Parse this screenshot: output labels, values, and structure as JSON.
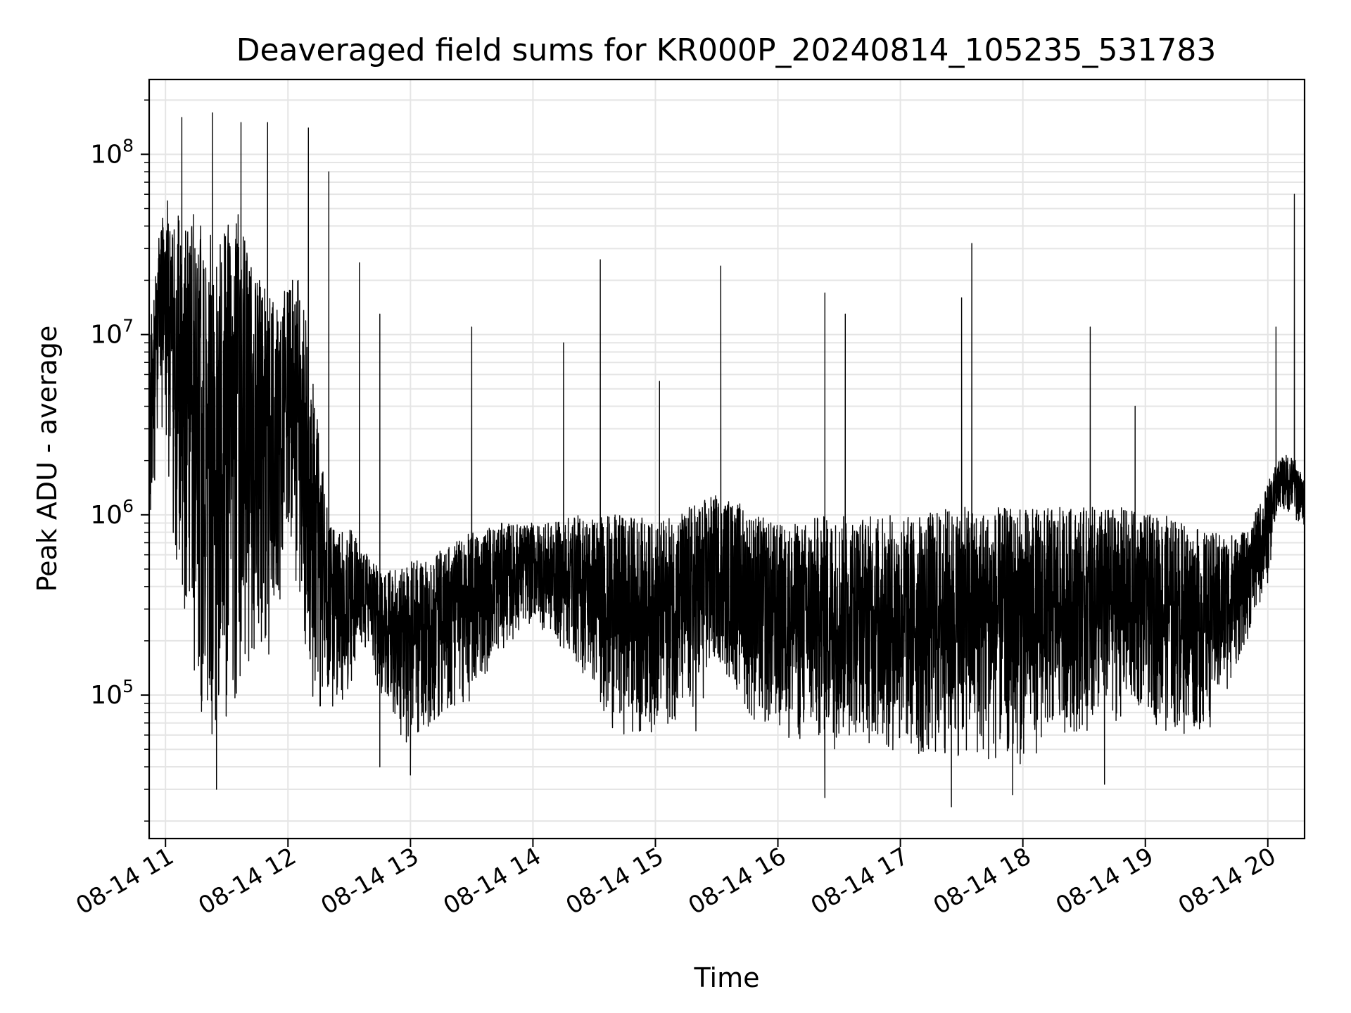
{
  "chart_data": {
    "type": "line",
    "title": "Deaveraged field sums for KR000P_20240814_105235_531783",
    "xlabel": "Time",
    "ylabel": "Peak ADU - average",
    "x_scale": "time",
    "y_scale": "log",
    "xlim": [
      "2024-08-14 10:52",
      "2024-08-14 20:18"
    ],
    "ylim": [
      16000,
      260000000
    ],
    "x_ticks": [
      {
        "value": "2024-08-14 11:00",
        "label": "08-14 11"
      },
      {
        "value": "2024-08-14 12:00",
        "label": "08-14 12"
      },
      {
        "value": "2024-08-14 13:00",
        "label": "08-14 13"
      },
      {
        "value": "2024-08-14 14:00",
        "label": "08-14 14"
      },
      {
        "value": "2024-08-14 15:00",
        "label": "08-14 15"
      },
      {
        "value": "2024-08-14 16:00",
        "label": "08-14 16"
      },
      {
        "value": "2024-08-14 17:00",
        "label": "08-14 17"
      },
      {
        "value": "2024-08-14 18:00",
        "label": "08-14 18"
      },
      {
        "value": "2024-08-14 19:00",
        "label": "08-14 19"
      },
      {
        "value": "2024-08-14 20:00",
        "label": "08-14 20"
      }
    ],
    "y_ticks": [
      {
        "value": 100000,
        "base": "10",
        "exp": "5"
      },
      {
        "value": 1000000,
        "base": "10",
        "exp": "6"
      },
      {
        "value": 10000000,
        "base": "10",
        "exp": "7"
      },
      {
        "value": 100000000,
        "base": "10",
        "exp": "8"
      }
    ],
    "grid": true,
    "line_color": "#000000",
    "grid_color": "#e5e5e5",
    "series": [
      {
        "x": [
          "2024-08-14 10:52",
          "2024-08-14 10:56",
          "2024-08-14 11:00",
          "2024-08-14 11:05",
          "2024-08-14 11:10",
          "2024-08-14 11:15",
          "2024-08-14 11:20",
          "2024-08-14 11:25",
          "2024-08-14 11:30",
          "2024-08-14 11:35",
          "2024-08-14 11:40",
          "2024-08-14 11:45",
          "2024-08-14 11:50",
          "2024-08-14 11:55",
          "2024-08-14 12:00",
          "2024-08-14 12:05",
          "2024-08-14 12:10",
          "2024-08-14 12:15",
          "2024-08-14 12:20",
          "2024-08-14 12:25",
          "2024-08-14 12:30",
          "2024-08-14 12:35",
          "2024-08-14 12:40",
          "2024-08-14 12:45",
          "2024-08-14 12:50",
          "2024-08-14 12:55",
          "2024-08-14 13:00",
          "2024-08-14 13:10",
          "2024-08-14 13:20",
          "2024-08-14 13:30",
          "2024-08-14 13:40",
          "2024-08-14 13:50",
          "2024-08-14 14:00",
          "2024-08-14 14:10",
          "2024-08-14 14:20",
          "2024-08-14 14:30",
          "2024-08-14 14:40",
          "2024-08-14 14:50",
          "2024-08-14 15:00",
          "2024-08-14 15:10",
          "2024-08-14 15:20",
          "2024-08-14 15:30",
          "2024-08-14 15:40",
          "2024-08-14 15:50",
          "2024-08-14 16:00",
          "2024-08-14 16:10",
          "2024-08-14 16:20",
          "2024-08-14 16:30",
          "2024-08-14 16:40",
          "2024-08-14 16:50",
          "2024-08-14 17:00",
          "2024-08-14 17:10",
          "2024-08-14 17:20",
          "2024-08-14 17:30",
          "2024-08-14 17:40",
          "2024-08-14 17:50",
          "2024-08-14 18:00",
          "2024-08-14 18:10",
          "2024-08-14 18:20",
          "2024-08-14 18:30",
          "2024-08-14 18:40",
          "2024-08-14 18:50",
          "2024-08-14 19:00",
          "2024-08-14 19:10",
          "2024-08-14 19:20",
          "2024-08-14 19:30",
          "2024-08-14 19:40",
          "2024-08-14 19:50",
          "2024-08-14 20:00",
          "2024-08-14 20:05",
          "2024-08-14 20:10",
          "2024-08-14 20:14",
          "2024-08-14 20:18"
        ],
        "low": [
          800000,
          1500000,
          2000000,
          300000,
          150000,
          100000,
          60000,
          50000,
          70000,
          100000,
          120000,
          200000,
          150000,
          300000,
          500000,
          400000,
          100000,
          80000,
          70000,
          80000,
          100000,
          200000,
          150000,
          100000,
          80000,
          60000,
          50000,
          70000,
          80000,
          90000,
          150000,
          200000,
          250000,
          200000,
          150000,
          100000,
          60000,
          60000,
          60000,
          70000,
          60000,
          150000,
          100000,
          60000,
          60000,
          50000,
          50000,
          50000,
          60000,
          45000,
          45000,
          40000,
          40000,
          45000,
          40000,
          40000,
          40000,
          50000,
          60000,
          60000,
          70000,
          70000,
          80000,
          60000,
          60000,
          60000,
          100000,
          200000,
          400000,
          1100000,
          1000000,
          900000,
          800000
        ],
        "high": [
          10000000,
          30000000,
          60000000,
          50000000,
          40000000,
          50000000,
          40000000,
          30000000,
          40000000,
          50000000,
          30000000,
          20000000,
          20000000,
          15000000,
          20000000,
          20000000,
          10000000,
          3000000,
          900000,
          800000,
          900000,
          700000,
          600000,
          500000,
          500000,
          500000,
          550000,
          600000,
          700000,
          800000,
          900000,
          900000,
          900000,
          900000,
          1000000,
          1000000,
          1000000,
          1000000,
          900000,
          1000000,
          1200000,
          1300000,
          1200000,
          1000000,
          900000,
          900000,
          1000000,
          1000000,
          1000000,
          1000000,
          1000000,
          1000000,
          1100000,
          1100000,
          1100000,
          1100000,
          1100000,
          1100000,
          1100000,
          1100000,
          1100000,
          1100000,
          1000000,
          1000000,
          900000,
          800000,
          800000,
          800000,
          1500000,
          2000000,
          2200000,
          2000000,
          1500000
        ],
        "spikes": [
          {
            "x": "2024-08-14 11:08",
            "y": 160000000
          },
          {
            "x": "2024-08-14 11:23",
            "y": 170000000
          },
          {
            "x": "2024-08-14 11:37",
            "y": 150000000
          },
          {
            "x": "2024-08-14 11:50",
            "y": 150000000
          },
          {
            "x": "2024-08-14 12:10",
            "y": 140000000
          },
          {
            "x": "2024-08-14 12:20",
            "y": 80000000
          },
          {
            "x": "2024-08-14 12:35",
            "y": 25000000
          },
          {
            "x": "2024-08-14 12:45",
            "y": 13000000
          },
          {
            "x": "2024-08-14 13:30",
            "y": 11000000
          },
          {
            "x": "2024-08-14 14:15",
            "y": 9000000
          },
          {
            "x": "2024-08-14 14:33",
            "y": 26000000
          },
          {
            "x": "2024-08-14 15:02",
            "y": 5500000
          },
          {
            "x": "2024-08-14 15:32",
            "y": 24000000
          },
          {
            "x": "2024-08-14 16:23",
            "y": 17000000
          },
          {
            "x": "2024-08-14 16:33",
            "y": 13000000
          },
          {
            "x": "2024-08-14 17:30",
            "y": 16000000
          },
          {
            "x": "2024-08-14 17:35",
            "y": 32000000
          },
          {
            "x": "2024-08-14 18:33",
            "y": 11000000
          },
          {
            "x": "2024-08-14 18:55",
            "y": 4000000
          },
          {
            "x": "2024-08-14 20:04",
            "y": 11000000
          },
          {
            "x": "2024-08-14 20:13",
            "y": 60000000
          }
        ],
        "dips": [
          {
            "x": "2024-08-14 11:25",
            "y": 30000
          },
          {
            "x": "2024-08-14 12:45",
            "y": 40000
          },
          {
            "x": "2024-08-14 13:00",
            "y": 36000
          },
          {
            "x": "2024-08-14 16:23",
            "y": 27000
          },
          {
            "x": "2024-08-14 17:25",
            "y": 24000
          },
          {
            "x": "2024-08-14 17:55",
            "y": 28000
          },
          {
            "x": "2024-08-14 18:40",
            "y": 32000
          }
        ]
      }
    ]
  }
}
